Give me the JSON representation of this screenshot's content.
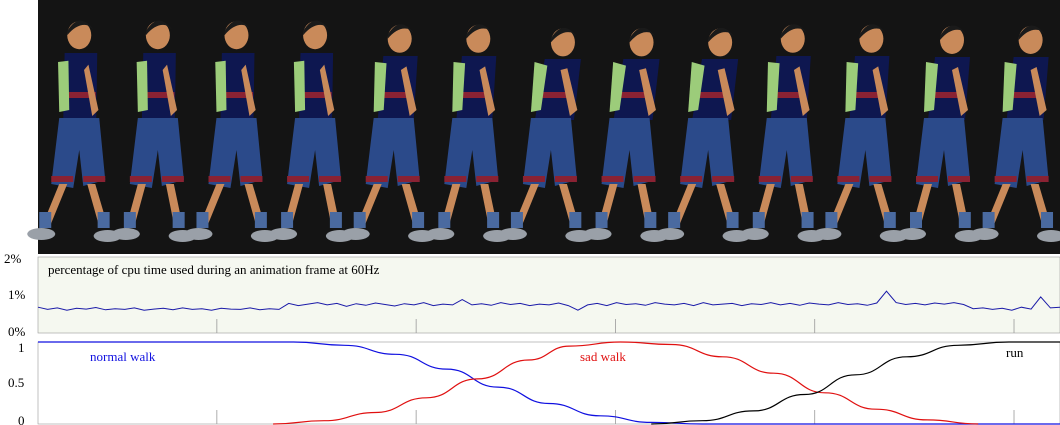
{
  "figure": {
    "image_region": {
      "description_icon": "animated-character-walk-sequence",
      "background": "#141414",
      "poses": [
        {
          "blend": "normal-walk"
        },
        {
          "blend": "normal-walk"
        },
        {
          "blend": "normal-walk"
        },
        {
          "blend": "normal-walk"
        },
        {
          "blend": "transition"
        },
        {
          "blend": "transition"
        },
        {
          "blend": "sad-walk"
        },
        {
          "blend": "sad-walk"
        },
        {
          "blend": "sad-walk"
        },
        {
          "blend": "transition"
        },
        {
          "blend": "transition"
        },
        {
          "blend": "run"
        },
        {
          "blend": "run"
        }
      ]
    },
    "cpu_panel": {
      "title": "percentage of cpu time used during an animation frame at 60Hz",
      "yticks": [
        "2%",
        "1%",
        "0%"
      ],
      "line_color": "#1a1aa8",
      "background": "#f5f8f0"
    },
    "blend_panel": {
      "yticks": [
        "1",
        "0.5",
        "0"
      ],
      "background": "#ffffff",
      "series": [
        {
          "name": "normal walk",
          "color": "#1010e0"
        },
        {
          "name": "sad walk",
          "color": "#e01010"
        },
        {
          "name": "run",
          "color": "#000000"
        }
      ]
    }
  },
  "chart_data": [
    {
      "type": "line",
      "title": "percentage of cpu time used during an animation frame at 60Hz",
      "yticks": [
        "0%",
        "1%",
        "2%"
      ],
      "ylim": [
        0,
        2
      ],
      "xlim": [
        0,
        1
      ],
      "x_vertical_ticks": [
        0.175,
        0.37,
        0.565,
        0.76,
        0.955
      ],
      "series": [
        {
          "values_pct": [
            0.68,
            0.62,
            0.66,
            0.6,
            0.65,
            0.63,
            0.67,
            0.61,
            0.64,
            0.62,
            0.66,
            0.6,
            0.63,
            0.65,
            0.61,
            0.66,
            0.62,
            0.64,
            0.6,
            0.65,
            0.63,
            0.62,
            0.66,
            0.61,
            0.64,
            0.62,
            0.78,
            0.72,
            0.76,
            0.8,
            0.74,
            0.78,
            0.7,
            0.77,
            0.73,
            0.79,
            0.75,
            0.71,
            0.77,
            0.74,
            0.8,
            0.72,
            0.76,
            0.74,
            0.88,
            0.74,
            0.77,
            0.73,
            0.8,
            0.75,
            0.78,
            0.72,
            0.76,
            0.74,
            0.79,
            0.72,
            0.6,
            0.74,
            0.78,
            0.72,
            0.8,
            0.75,
            0.77,
            0.73,
            0.8,
            0.76,
            0.74,
            0.78,
            0.72,
            0.8,
            0.74,
            0.76,
            0.78,
            0.72,
            0.77,
            0.75,
            0.8,
            0.74,
            0.78,
            0.73,
            0.79,
            0.76,
            0.74,
            0.8,
            0.75,
            0.77,
            0.73,
            0.79,
            1.1,
            0.8,
            0.75,
            0.78,
            0.74,
            0.79,
            0.76,
            0.8,
            0.75,
            0.64,
            0.66,
            0.62,
            0.65,
            0.6,
            0.68,
            0.63,
            0.95,
            0.66,
            0.68
          ]
        }
      ]
    },
    {
      "type": "line",
      "yticks": [
        "0",
        "0.5",
        "1"
      ],
      "ylim": [
        0,
        1
      ],
      "xlim": [
        0,
        1
      ],
      "x_vertical_ticks": [
        0.175,
        0.37,
        0.565,
        0.76,
        0.955
      ],
      "series": [
        {
          "name": "normal walk",
          "color": "#1010e0",
          "x": [
            0.0,
            0.25,
            0.3,
            0.35,
            0.4,
            0.45,
            0.5,
            0.55,
            0.6,
            0.65,
            1.0
          ],
          "y": [
            1.0,
            1.0,
            0.96,
            0.85,
            0.67,
            0.45,
            0.25,
            0.1,
            0.02,
            0.0,
            0.0
          ]
        },
        {
          "name": "sad walk",
          "color": "#e01010",
          "x": [
            0.23,
            0.28,
            0.33,
            0.38,
            0.43,
            0.48,
            0.52,
            0.57,
            0.62,
            0.67,
            0.72,
            0.77,
            0.82,
            0.87,
            0.92
          ],
          "y": [
            0.0,
            0.04,
            0.14,
            0.32,
            0.55,
            0.78,
            0.95,
            1.0,
            0.97,
            0.82,
            0.62,
            0.38,
            0.18,
            0.05,
            0.0
          ]
        },
        {
          "name": "run",
          "color": "#000000",
          "x": [
            0.6,
            0.65,
            0.7,
            0.75,
            0.8,
            0.85,
            0.9,
            0.95,
            1.0
          ],
          "y": [
            0.0,
            0.04,
            0.16,
            0.36,
            0.6,
            0.82,
            0.96,
            1.0,
            1.0
          ]
        }
      ]
    }
  ]
}
